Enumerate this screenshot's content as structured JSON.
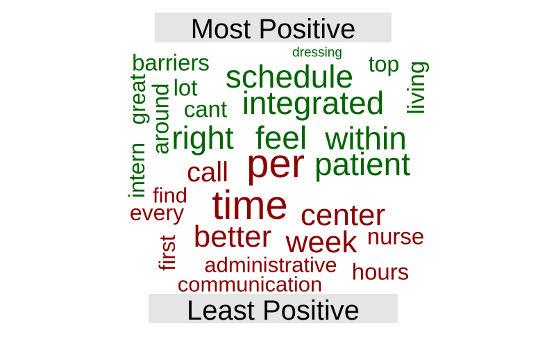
{
  "header": {
    "top_label": "Most Positive",
    "bottom_label": "Least Positive"
  },
  "colors": {
    "positive": "#006400",
    "negative": "#8b0000",
    "banner": "#e5e5e5"
  },
  "chart_data": {
    "type": "wordcloud",
    "groups": [
      {
        "name": "Most Positive",
        "color": "#006400",
        "words": [
          "dressing",
          "barriers",
          "top",
          "schedule",
          "lot",
          "living",
          "great",
          "integrated",
          "cant",
          "around",
          "right",
          "feel",
          "within",
          "intern",
          "patient"
        ]
      },
      {
        "name": "Least Positive",
        "color": "#8b0000",
        "words": [
          "per",
          "call",
          "find",
          "time",
          "every",
          "center",
          "better",
          "week",
          "nurse",
          "first",
          "administrative",
          "hours",
          "communication"
        ]
      }
    ]
  }
}
